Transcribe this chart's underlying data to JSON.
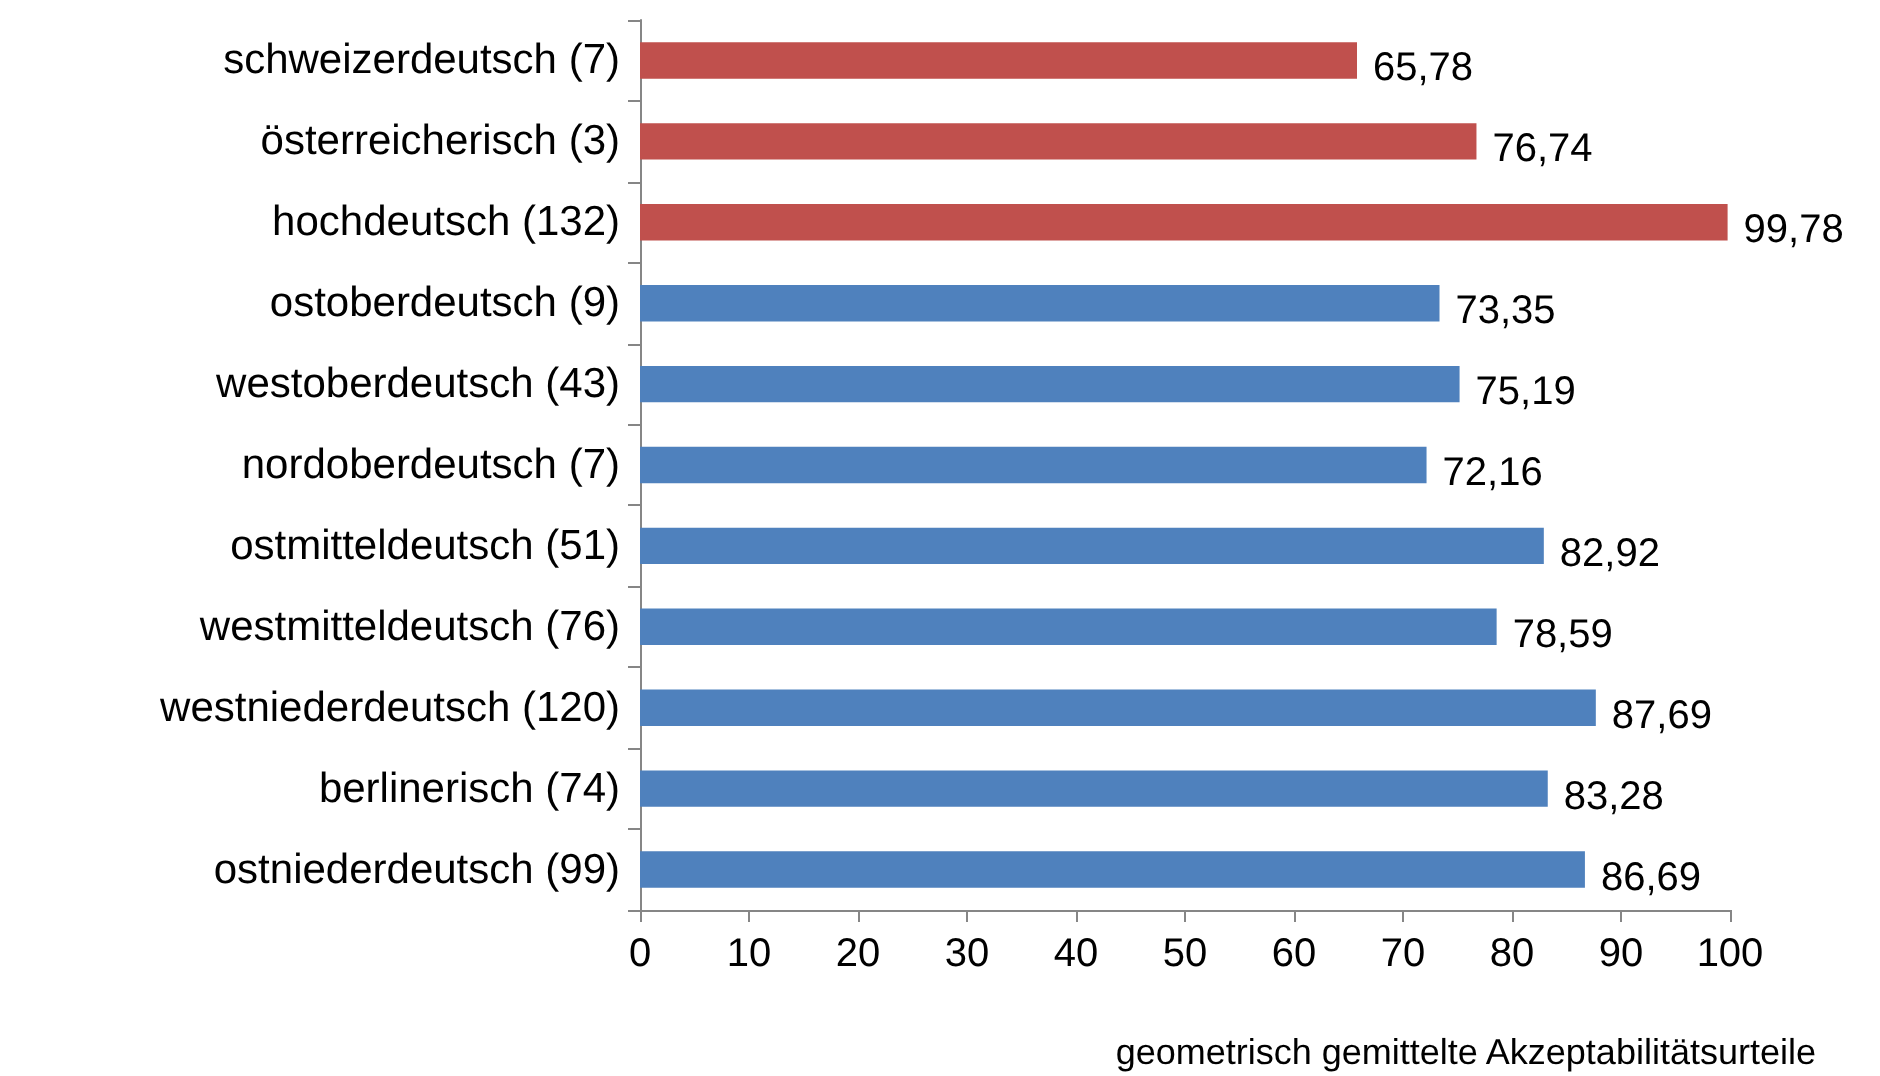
{
  "chart_data": {
    "type": "bar",
    "orientation": "horizontal",
    "xlabel": "geometrisch gemittelte Akzeptabilitätsurteile",
    "categories": [
      "schweizerdeutsch (7)",
      "österreicherisch (3)",
      "hochdeutsch (132)",
      "ostoberdeutsch (9)",
      "westoberdeutsch (43)",
      "nordoberdeutsch (7)",
      "ostmitteldeutsch (51)",
      "westmitteldeutsch (76)",
      "westniederdeutsch (120)",
      "berlinerisch (74)",
      "ostniederdeutsch (99)"
    ],
    "values": [
      65.78,
      76.74,
      99.78,
      73.35,
      75.19,
      72.16,
      82.92,
      78.59,
      87.69,
      83.28,
      86.69
    ],
    "value_labels": [
      "65,78",
      "76,74",
      "99,78",
      "73,35",
      "75,19",
      "72,16",
      "82,92",
      "78,59",
      "87,69",
      "83,28",
      "86,69"
    ],
    "colors": [
      "#c0504d",
      "#c0504d",
      "#c0504d",
      "#4f81bd",
      "#4f81bd",
      "#4f81bd",
      "#4f81bd",
      "#4f81bd",
      "#4f81bd",
      "#4f81bd",
      "#4f81bd"
    ],
    "xlim": [
      0,
      100
    ],
    "xticks": [
      0,
      10,
      20,
      30,
      40,
      50,
      60,
      70,
      80,
      90,
      100
    ],
    "grid": false
  }
}
